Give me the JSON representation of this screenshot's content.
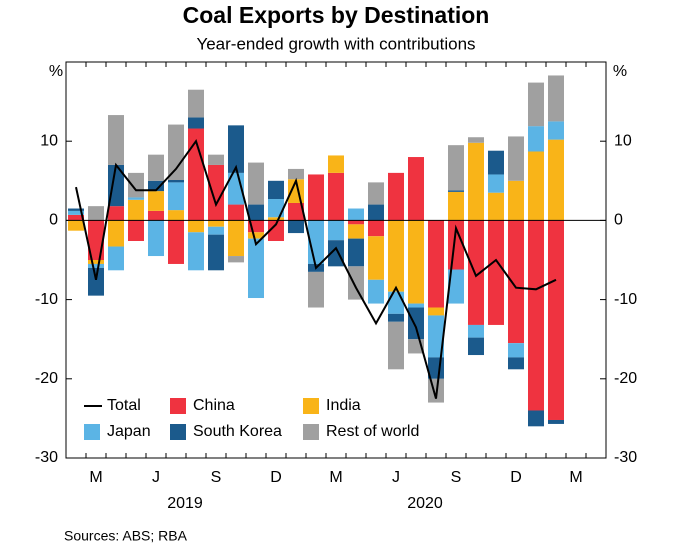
{
  "chart_data": {
    "type": "bar",
    "stacked": true,
    "title": "Coal Exports by Destination",
    "subtitle": "Year-ended growth with contributions",
    "y_unit": "%",
    "y2_unit": "%",
    "source": "Sources: ABS; RBA",
    "year_labels": [
      "2019",
      "2020"
    ],
    "categories": [
      null,
      "M",
      null,
      null,
      "J",
      null,
      null,
      "S",
      null,
      null,
      "D",
      null,
      null,
      "M",
      null,
      null,
      "J",
      null,
      null,
      "S",
      null,
      null,
      "D",
      null,
      null,
      "M",
      null
    ],
    "ylim": [
      -30,
      20
    ],
    "yticks": [
      -30,
      -20,
      -10,
      0,
      10
    ],
    "y2lim": [
      -30,
      20
    ],
    "y2ticks": [
      -30,
      -20,
      -10,
      0,
      10
    ],
    "series": [
      {
        "name": "Total",
        "type": "line",
        "color": "#000000",
        "values": [
          4.2,
          -7.5,
          7,
          3.8,
          3.8,
          6.5,
          10,
          2,
          6.7,
          -3,
          -0.5,
          5,
          -6,
          -3.5,
          -8.5,
          -13,
          -8.5,
          -13.5,
          -22.5,
          -1,
          -7,
          -5,
          -8.5,
          -8.7,
          -7.5,
          null,
          null
        ]
      },
      {
        "name": "China",
        "color": "#ef3340",
        "values": [
          0.7,
          -5,
          1.8,
          -2.6,
          1.2,
          -5.5,
          11.6,
          7,
          2,
          -1.5,
          -2.6,
          2.2,
          5.8,
          6,
          -0.5,
          -2,
          6,
          8,
          -11,
          -6.2,
          -13.2,
          -13.2,
          -15.5,
          -24,
          -25.2,
          null,
          null
        ]
      },
      {
        "name": "India",
        "color": "#f9b418",
        "values": [
          -1.3,
          -0.5,
          -3.3,
          2.6,
          2.5,
          1.3,
          -1.5,
          -0.8,
          -4.5,
          -0.8,
          0.4,
          3,
          0,
          2.2,
          -1.8,
          -5.5,
          -9,
          -10.5,
          -1,
          3.6,
          9.8,
          3.5,
          5,
          8.7,
          10.2,
          null,
          null
        ]
      },
      {
        "name": "Japan",
        "color": "#5bb4e5",
        "values": [
          0.5,
          -0.5,
          -3,
          0.3,
          -4.5,
          3.5,
          -4.8,
          -1,
          4,
          -7.5,
          2.3,
          0,
          -5.5,
          -2.5,
          1.5,
          -3,
          -2.8,
          -0.5,
          -5.3,
          -4.3,
          -1.6,
          2.3,
          -1.8,
          3.2,
          2.3,
          null,
          null
        ]
      },
      {
        "name": "South Korea",
        "color": "#1b5a8c",
        "values": [
          0.3,
          -3.5,
          5.2,
          0,
          1.3,
          0.3,
          1.4,
          -4.5,
          6,
          2,
          2.3,
          -1.6,
          -1,
          -3.3,
          -3.5,
          2,
          -1,
          -4,
          -2.7,
          0.2,
          -2.2,
          3,
          -1.5,
          -2,
          -0.5,
          null,
          null
        ]
      },
      {
        "name": "Rest of world",
        "color": "#a0a0a0",
        "values": [
          0,
          1.8,
          6.3,
          3.1,
          3.3,
          7,
          3.5,
          1.3,
          -0.8,
          5.3,
          0,
          1.3,
          -4.5,
          0,
          -4.2,
          2.8,
          -6,
          -1.8,
          -3,
          5.7,
          0.7,
          0,
          5.6,
          5.5,
          5.8,
          null,
          null
        ]
      }
    ]
  }
}
